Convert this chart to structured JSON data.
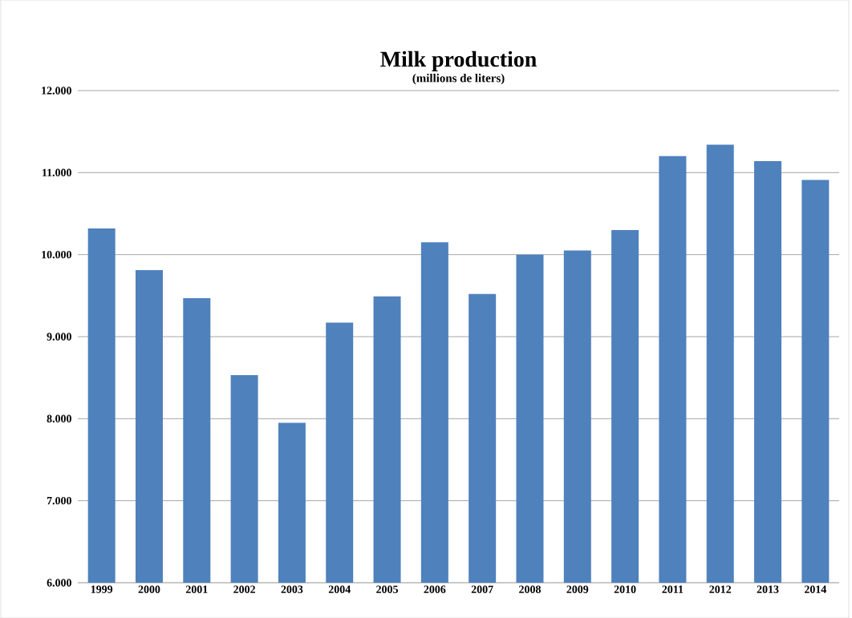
{
  "chart_data": {
    "type": "bar",
    "title": "Milk production",
    "subtitle": "(millions de liters)",
    "categories": [
      "1999",
      "2000",
      "2001",
      "2002",
      "2003",
      "2004",
      "2005",
      "2006",
      "2007",
      "2008",
      "2009",
      "2010",
      "2011",
      "2012",
      "2013",
      "2014"
    ],
    "values": [
      10320,
      9810,
      9470,
      8530,
      7950,
      9170,
      9490,
      10150,
      9520,
      10000,
      10050,
      10300,
      11200,
      11340,
      11140,
      10910
    ],
    "color": "#4f81bd",
    "ylim": [
      6000,
      12000
    ],
    "yticks": [
      {
        "value": 6000,
        "label": "6.000"
      },
      {
        "value": 7000,
        "label": "7.000"
      },
      {
        "value": 8000,
        "label": "8.000"
      },
      {
        "value": 9000,
        "label": "9.000"
      },
      {
        "value": 10000,
        "label": "10.000"
      },
      {
        "value": 11000,
        "label": "11.000"
      },
      {
        "value": 12000,
        "label": "12.000"
      }
    ],
    "grid": "y"
  }
}
